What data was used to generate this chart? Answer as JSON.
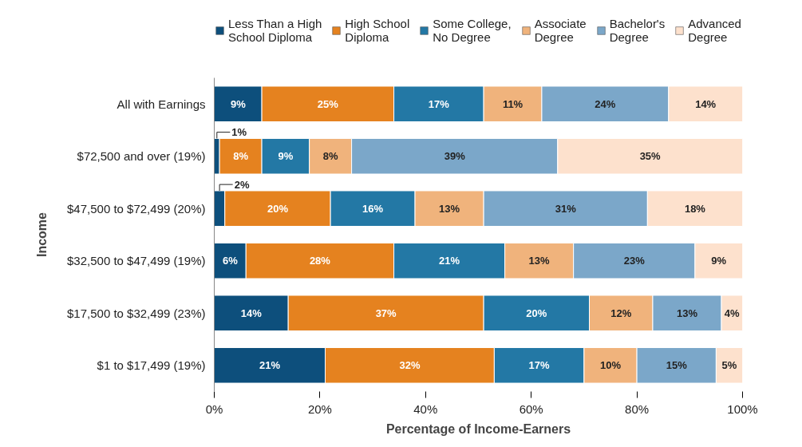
{
  "chart_data": {
    "type": "bar",
    "orientation": "horizontal",
    "stacked": true,
    "xlabel": "Percentage of Income-Earners",
    "ylabel": "Income",
    "categories": [
      "All with Earnings",
      "$72,500 and over (19%)",
      "$47,500 to $72,499 (20%)",
      "$32,500 to $47,499 (19%)",
      "$17,500 to $32,499 (23%)",
      "$1 to $17,499 (19%)"
    ],
    "series": [
      {
        "name": "Less Than a High\nSchool Diploma",
        "color": "#0d4f7c",
        "values": [
          9,
          1,
          2,
          6,
          14,
          21
        ],
        "value_labels": [
          "9%",
          "1%",
          "2%",
          "6%",
          "14%",
          "21%"
        ]
      },
      {
        "name": "High School\nDiploma",
        "color": "#e5821f",
        "values": [
          25,
          8,
          20,
          28,
          37,
          32
        ],
        "value_labels": [
          "25%",
          "8%",
          "20%",
          "28%",
          "37%",
          "32%"
        ]
      },
      {
        "name": "Some College,\nNo Degree",
        "color": "#2378a5",
        "values": [
          17,
          9,
          16,
          21,
          20,
          17
        ],
        "value_labels": [
          "17%",
          "9%",
          "16%",
          "21%",
          "20%",
          "17%"
        ]
      },
      {
        "name": "Associate\nDegree",
        "color": "#f0b37c",
        "values": [
          11,
          8,
          13,
          13,
          12,
          10
        ],
        "value_labels": [
          "11%",
          "8%",
          "13%",
          "13%",
          "12%",
          "10%"
        ]
      },
      {
        "name": "Bachelor's\nDegree",
        "color": "#7ba7c9",
        "values": [
          24,
          39,
          31,
          23,
          13,
          15
        ],
        "value_labels": [
          "24%",
          "39%",
          "31%",
          "23%",
          "13%",
          "15%"
        ]
      },
      {
        "name": "Advanced\nDegree",
        "color": "#fde1cd",
        "values": [
          14,
          35,
          18,
          9,
          4,
          5
        ],
        "value_labels": [
          "14%",
          "35%",
          "18%",
          "9%",
          "4%",
          "5%"
        ]
      }
    ],
    "xlim": [
      0,
      100
    ],
    "xticks": [
      {
        "value": 0,
        "label": "0%"
      },
      {
        "value": 20,
        "label": "20%"
      },
      {
        "value": 40,
        "label": "40%"
      },
      {
        "value": 60,
        "label": "60%"
      },
      {
        "value": 80,
        "label": "80%"
      },
      {
        "value": 100,
        "label": "100%"
      }
    ],
    "legend": "top"
  }
}
